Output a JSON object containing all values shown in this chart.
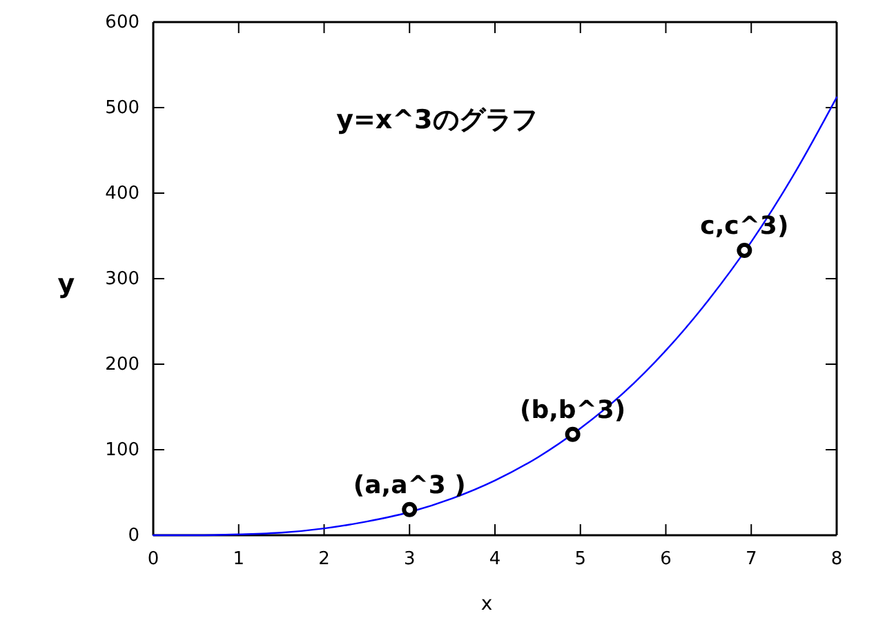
{
  "chart_data": {
    "type": "line",
    "title": "y=x^3のグラフ",
    "xlabel": "x",
    "ylabel": "y",
    "xlim": [
      0,
      8
    ],
    "xticks": [
      0,
      1,
      2,
      3,
      4,
      5,
      6,
      7,
      8
    ],
    "ylim": [
      0,
      600
    ],
    "yticks": [
      0,
      100,
      200,
      300,
      400,
      500,
      600
    ],
    "grid": false,
    "series": [
      {
        "type": "line",
        "color": "#0000ff",
        "marker": "none",
        "line_style": "solid",
        "x": [
          0,
          0.5,
          1,
          1.5,
          2,
          2.5,
          3,
          3.5,
          4,
          4.5,
          5,
          5.5,
          6,
          6.5,
          7,
          7.5,
          8
        ],
        "values": [
          0,
          0,
          1,
          3,
          8,
          16,
          27,
          43,
          64,
          91,
          125,
          166,
          216,
          275,
          343,
          422,
          512
        ]
      },
      {
        "type": "scatter",
        "color": "#000000",
        "marker": "circle",
        "x": [
          3,
          4.91,
          6.92
        ],
        "values": [
          30,
          118,
          333
        ]
      }
    ],
    "annotations": [
      {
        "text": "(a,a^3 )",
        "x": 3,
        "y": 30
      },
      {
        "text": "(b,b^3)",
        "x": 4.91,
        "y": 118
      },
      {
        "text": "c,c^3)",
        "x": 6.92,
        "y": 333
      }
    ]
  }
}
